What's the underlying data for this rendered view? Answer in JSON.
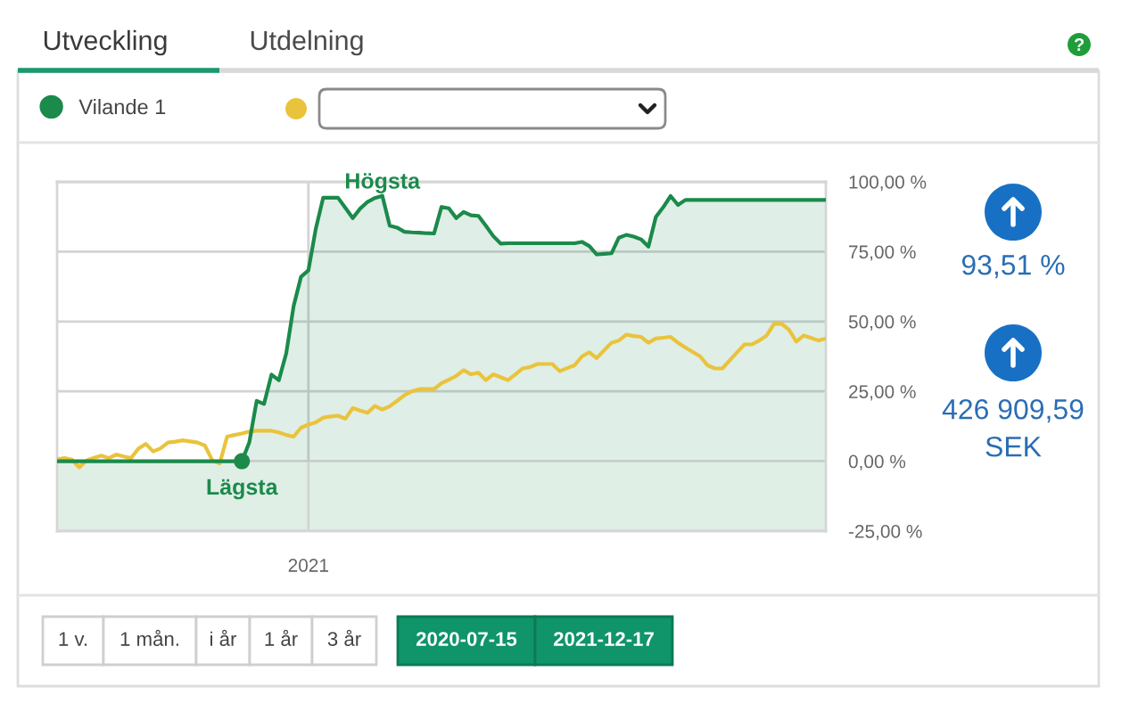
{
  "chart_data": {
    "type": "line",
    "categories": [
      null,
      null,
      null,
      null,
      null,
      null,
      null,
      null,
      null,
      null,
      null,
      null,
      null,
      null,
      null,
      null,
      null,
      null,
      null,
      null,
      null,
      null,
      null,
      null,
      null,
      null,
      null,
      null,
      null,
      null,
      null,
      null,
      null,
      null,
      "2021",
      null,
      null,
      null,
      null,
      null,
      null,
      null,
      null,
      null,
      null,
      null,
      null,
      null,
      null,
      null,
      null,
      null,
      null,
      null,
      null,
      null,
      null,
      null,
      null,
      null,
      null,
      null,
      null,
      null,
      null,
      null,
      null,
      null,
      null,
      null,
      null,
      null,
      null,
      null,
      null,
      null,
      null,
      null,
      null,
      null,
      null,
      null,
      null,
      null,
      null,
      null,
      null,
      null,
      null,
      null,
      null,
      null,
      null,
      null,
      null,
      null,
      null,
      null,
      null,
      null,
      null,
      null,
      null,
      null,
      null
    ],
    "series": [
      {
        "name": "Vilande 1",
        "type": "area",
        "color": "#1b8a4b",
        "values": [
          0,
          0,
          0,
          0,
          0,
          0,
          0,
          0,
          0,
          0,
          0,
          0,
          0,
          0,
          0,
          0,
          0,
          0,
          0,
          0,
          0,
          0,
          0,
          0,
          0,
          0,
          6.7,
          21.6,
          20.5,
          31,
          29,
          38.6,
          55.5,
          66,
          68.3,
          83.2,
          94.3,
          94.3,
          94.3,
          90.7,
          87,
          90.4,
          92.8,
          94.2,
          95,
          84.3,
          83.6,
          82.1,
          81.9,
          81.8,
          81.6,
          81.5,
          91,
          90.5,
          87,
          89.2,
          88,
          87.8,
          84.3,
          80.6,
          77.9,
          78,
          78,
          78,
          78,
          78,
          78,
          78,
          78,
          78,
          78,
          78.5,
          77,
          74,
          74.2,
          74.4,
          80,
          81,
          80.4,
          79.4,
          76.8,
          87.4,
          90.9,
          94.9,
          91.7,
          93.5,
          93.5,
          93.5,
          93.5,
          93.5,
          93.5,
          93.5,
          93.5,
          93.5,
          93.5,
          93.5,
          93.5,
          93.5,
          93.5,
          93.5,
          93.5,
          93.5,
          93.5,
          93.5,
          93.5
        ]
      },
      {
        "color": "#eac33c",
        "values": [
          0.7,
          1.1,
          0.6,
          -2.2,
          0.3,
          1.2,
          2,
          1.1,
          2.4,
          1.7,
          1.1,
          4.5,
          6.2,
          3.5,
          4.6,
          6.7,
          7,
          7.5,
          7.1,
          6.7,
          5.6,
          0.3,
          -0.8,
          8.8,
          9.4,
          9.9,
          10.6,
          10.9,
          10.9,
          10.9,
          10.3,
          9.4,
          8.8,
          12,
          13.1,
          13.9,
          15.6,
          16,
          16.3,
          15.2,
          19,
          18.1,
          17.3,
          19.8,
          18.5,
          19.7,
          21.6,
          23.7,
          25,
          25.8,
          25.8,
          25.8,
          27.9,
          29.2,
          30.5,
          32.6,
          31.1,
          31.7,
          29,
          31.1,
          30.1,
          29,
          31.1,
          33.2,
          33.7,
          34.8,
          34.8,
          34.8,
          32.2,
          33.3,
          34.3,
          37.5,
          39,
          36.9,
          39.7,
          42.4,
          43.2,
          45.3,
          44.8,
          44.5,
          42.4,
          43.9,
          44.2,
          44.5,
          42.4,
          40.7,
          39.1,
          37.5,
          34.3,
          33.2,
          33.2,
          36.1,
          39,
          41.8,
          41.8,
          43.2,
          45,
          49.2,
          49.2,
          47.1,
          42.8,
          45,
          44.1,
          43.2,
          43.9
        ]
      },
      {
        "type": "scatter",
        "color": "#1b8a4b",
        "values": [
          null,
          null,
          null,
          null,
          null,
          null,
          null,
          null,
          null,
          null,
          null,
          null,
          null,
          null,
          null,
          null,
          null,
          null,
          null,
          null,
          null,
          null,
          null,
          null,
          null,
          0,
          null,
          null,
          null,
          null,
          null,
          null,
          null,
          null,
          null,
          null,
          null,
          null,
          null,
          null,
          null,
          null,
          null,
          null,
          null,
          null,
          null,
          null,
          null,
          null,
          null,
          null,
          null,
          null,
          null,
          null,
          null,
          null,
          null,
          null,
          null,
          null,
          null,
          null,
          null,
          null,
          null,
          null,
          null,
          null,
          null,
          null,
          null,
          null,
          null,
          null,
          null,
          null,
          null,
          null,
          null,
          null,
          null,
          null,
          null,
          null,
          null,
          null,
          null,
          null,
          null,
          null,
          null,
          null,
          null,
          null,
          null,
          null,
          null,
          null,
          null,
          null,
          null,
          null,
          null
        ]
      }
    ],
    "ylim": [
      -25,
      100
    ],
    "yticks": [
      {
        "value": -25,
        "label": "-25,00 %"
      },
      {
        "value": 0,
        "label": "0,00 %"
      },
      {
        "value": 25,
        "label": "25,00 %"
      },
      {
        "value": 50,
        "label": "50,00 %"
      },
      {
        "value": 75,
        "label": "75,00 %"
      },
      {
        "value": 100,
        "label": "100,00 %"
      }
    ],
    "bands": [
      {
        "axis": "y",
        "from": -25,
        "to": 0,
        "color": "#dfefe6"
      }
    ],
    "grid": true,
    "legend": "top left",
    "annotations": [
      {
        "text": "Högsta",
        "y": 95
      },
      {
        "text": "Lägsta",
        "y": 0
      },
      "Utveckling",
      "Utdelning",
      "93,51 %",
      "426 909,59",
      "SEK",
      "1 v.",
      "1 mån.",
      "i år",
      "1 år",
      "3 år",
      "2020-07-15",
      "2021-12-17"
    ]
  }
}
